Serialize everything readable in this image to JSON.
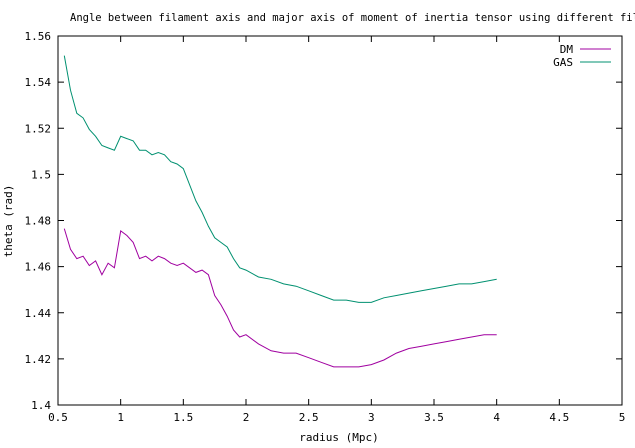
{
  "chart_data": {
    "type": "line",
    "title": "Angle between filament axis and major axis of moment of inertia tensor using different fil",
    "xlabel": "radius (Mpc)",
    "ylabel": "theta (rad)",
    "xlim": [
      0.5,
      5
    ],
    "ylim": [
      1.4,
      1.56
    ],
    "x_ticks": [
      "0.5",
      "1",
      "1.5",
      "2",
      "2.5",
      "3",
      "3.5",
      "4",
      "4.5",
      "5"
    ],
    "y_ticks": [
      "1.4",
      "1.42",
      "1.44",
      "1.46",
      "1.48",
      "1.5",
      "1.52",
      "1.54",
      "1.56"
    ],
    "grid": false,
    "legend_position": "top-right",
    "series": [
      {
        "name": "DM",
        "color": "#a000a0",
        "points": [
          [
            0.55,
            1.4765
          ],
          [
            0.6,
            1.4675
          ],
          [
            0.65,
            1.4635
          ],
          [
            0.7,
            1.4645
          ],
          [
            0.75,
            1.4605
          ],
          [
            0.8,
            1.4625
          ],
          [
            0.85,
            1.4565
          ],
          [
            0.9,
            1.4615
          ],
          [
            0.95,
            1.4595
          ],
          [
            1.0,
            1.4755
          ],
          [
            1.05,
            1.4735
          ],
          [
            1.1,
            1.4705
          ],
          [
            1.15,
            1.4635
          ],
          [
            1.2,
            1.4645
          ],
          [
            1.25,
            1.4625
          ],
          [
            1.3,
            1.4645
          ],
          [
            1.35,
            1.4635
          ],
          [
            1.4,
            1.4615
          ],
          [
            1.45,
            1.4605
          ],
          [
            1.5,
            1.4615
          ],
          [
            1.6,
            1.4575
          ],
          [
            1.65,
            1.4585
          ],
          [
            1.7,
            1.4565
          ],
          [
            1.75,
            1.4475
          ],
          [
            1.8,
            1.4435
          ],
          [
            1.85,
            1.4385
          ],
          [
            1.9,
            1.4325
          ],
          [
            1.95,
            1.4295
          ],
          [
            2.0,
            1.4305
          ],
          [
            2.1,
            1.4265
          ],
          [
            2.2,
            1.4235
          ],
          [
            2.3,
            1.4225
          ],
          [
            2.4,
            1.4225
          ],
          [
            2.5,
            1.4205
          ],
          [
            2.6,
            1.4185
          ],
          [
            2.7,
            1.4165
          ],
          [
            2.8,
            1.4165
          ],
          [
            2.9,
            1.4165
          ],
          [
            3.0,
            1.4175
          ],
          [
            3.1,
            1.4195
          ],
          [
            3.2,
            1.4225
          ],
          [
            3.3,
            1.4245
          ],
          [
            3.4,
            1.4255
          ],
          [
            3.5,
            1.4265
          ],
          [
            3.6,
            1.4275
          ],
          [
            3.7,
            1.4285
          ],
          [
            3.8,
            1.4295
          ],
          [
            3.9,
            1.4305
          ],
          [
            4.0,
            1.4305
          ]
        ]
      },
      {
        "name": "GAS",
        "color": "#009070",
        "points": [
          [
            0.55,
            1.5515
          ],
          [
            0.6,
            1.5365
          ],
          [
            0.65,
            1.5265
          ],
          [
            0.7,
            1.5245
          ],
          [
            0.75,
            1.5195
          ],
          [
            0.8,
            1.5165
          ],
          [
            0.85,
            1.5125
          ],
          [
            0.9,
            1.5115
          ],
          [
            0.95,
            1.5105
          ],
          [
            1.0,
            1.5165
          ],
          [
            1.05,
            1.5155
          ],
          [
            1.1,
            1.5145
          ],
          [
            1.15,
            1.5105
          ],
          [
            1.2,
            1.5105
          ],
          [
            1.25,
            1.5085
          ],
          [
            1.3,
            1.5095
          ],
          [
            1.35,
            1.5085
          ],
          [
            1.4,
            1.5055
          ],
          [
            1.45,
            1.5045
          ],
          [
            1.5,
            1.5025
          ],
          [
            1.6,
            1.4885
          ],
          [
            1.65,
            1.4835
          ],
          [
            1.7,
            1.4775
          ],
          [
            1.75,
            1.4725
          ],
          [
            1.8,
            1.4705
          ],
          [
            1.85,
            1.4685
          ],
          [
            1.9,
            1.4635
          ],
          [
            1.95,
            1.4595
          ],
          [
            2.0,
            1.4585
          ],
          [
            2.1,
            1.4555
          ],
          [
            2.2,
            1.4545
          ],
          [
            2.3,
            1.4525
          ],
          [
            2.4,
            1.4515
          ],
          [
            2.5,
            1.4495
          ],
          [
            2.6,
            1.4475
          ],
          [
            2.7,
            1.4455
          ],
          [
            2.8,
            1.4455
          ],
          [
            2.9,
            1.4445
          ],
          [
            3.0,
            1.4445
          ],
          [
            3.1,
            1.4465
          ],
          [
            3.2,
            1.4475
          ],
          [
            3.3,
            1.4485
          ],
          [
            3.4,
            1.4495
          ],
          [
            3.5,
            1.4505
          ],
          [
            3.6,
            1.4515
          ],
          [
            3.7,
            1.4525
          ],
          [
            3.8,
            1.4525
          ],
          [
            3.9,
            1.4535
          ],
          [
            4.0,
            1.4545
          ]
        ]
      }
    ]
  }
}
